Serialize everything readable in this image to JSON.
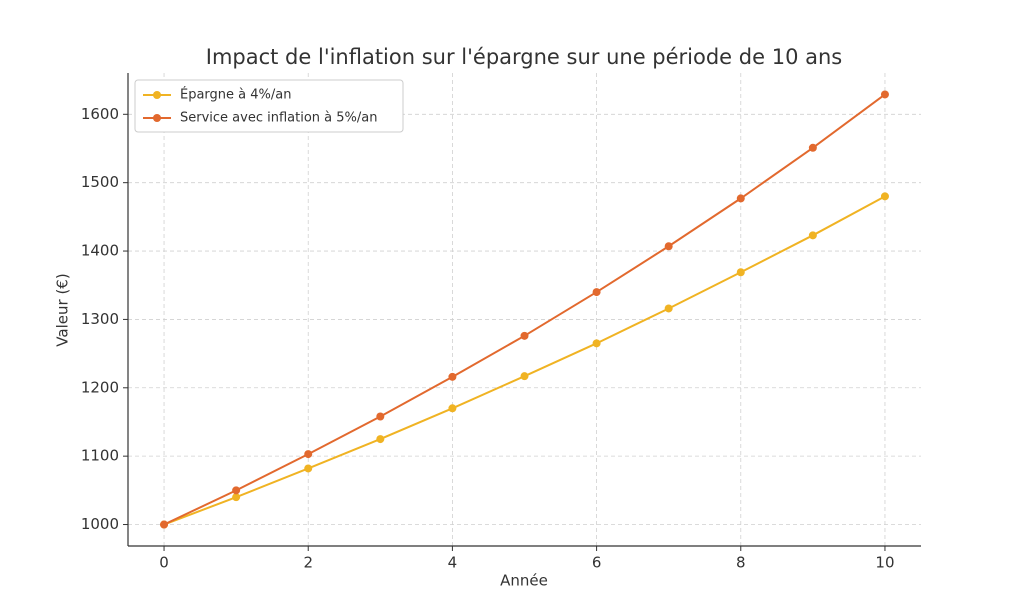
{
  "chart_data": {
    "type": "line",
    "title": "Impact de l'inflation sur l'épargne sur une période de 10 ans",
    "x_label": "Année",
    "y_label": "Valeur (€)",
    "x": [
      0,
      1,
      2,
      3,
      4,
      5,
      6,
      7,
      8,
      9,
      10
    ],
    "series": [
      {
        "name": "Épargne à 4%/an",
        "color": "#f0b323",
        "values": [
          1000,
          1040,
          1082,
          1125,
          1170,
          1217,
          1265,
          1316,
          1369,
          1423,
          1480
        ]
      },
      {
        "name": "Service avec inflation à 5%/an",
        "color": "#e2692e",
        "values": [
          1000,
          1050,
          1103,
          1158,
          1216,
          1276,
          1340,
          1407,
          1477,
          1551,
          1629
        ]
      }
    ],
    "xlim": [
      -0.5,
      10.5
    ],
    "xticks": [
      0,
      2,
      4,
      6,
      8,
      10
    ],
    "ylim": [
      968.6,
      1660.4
    ],
    "yticks": [
      1000,
      1100,
      1200,
      1300,
      1400,
      1500,
      1600
    ],
    "grid": true,
    "legend": "upper-left"
  }
}
